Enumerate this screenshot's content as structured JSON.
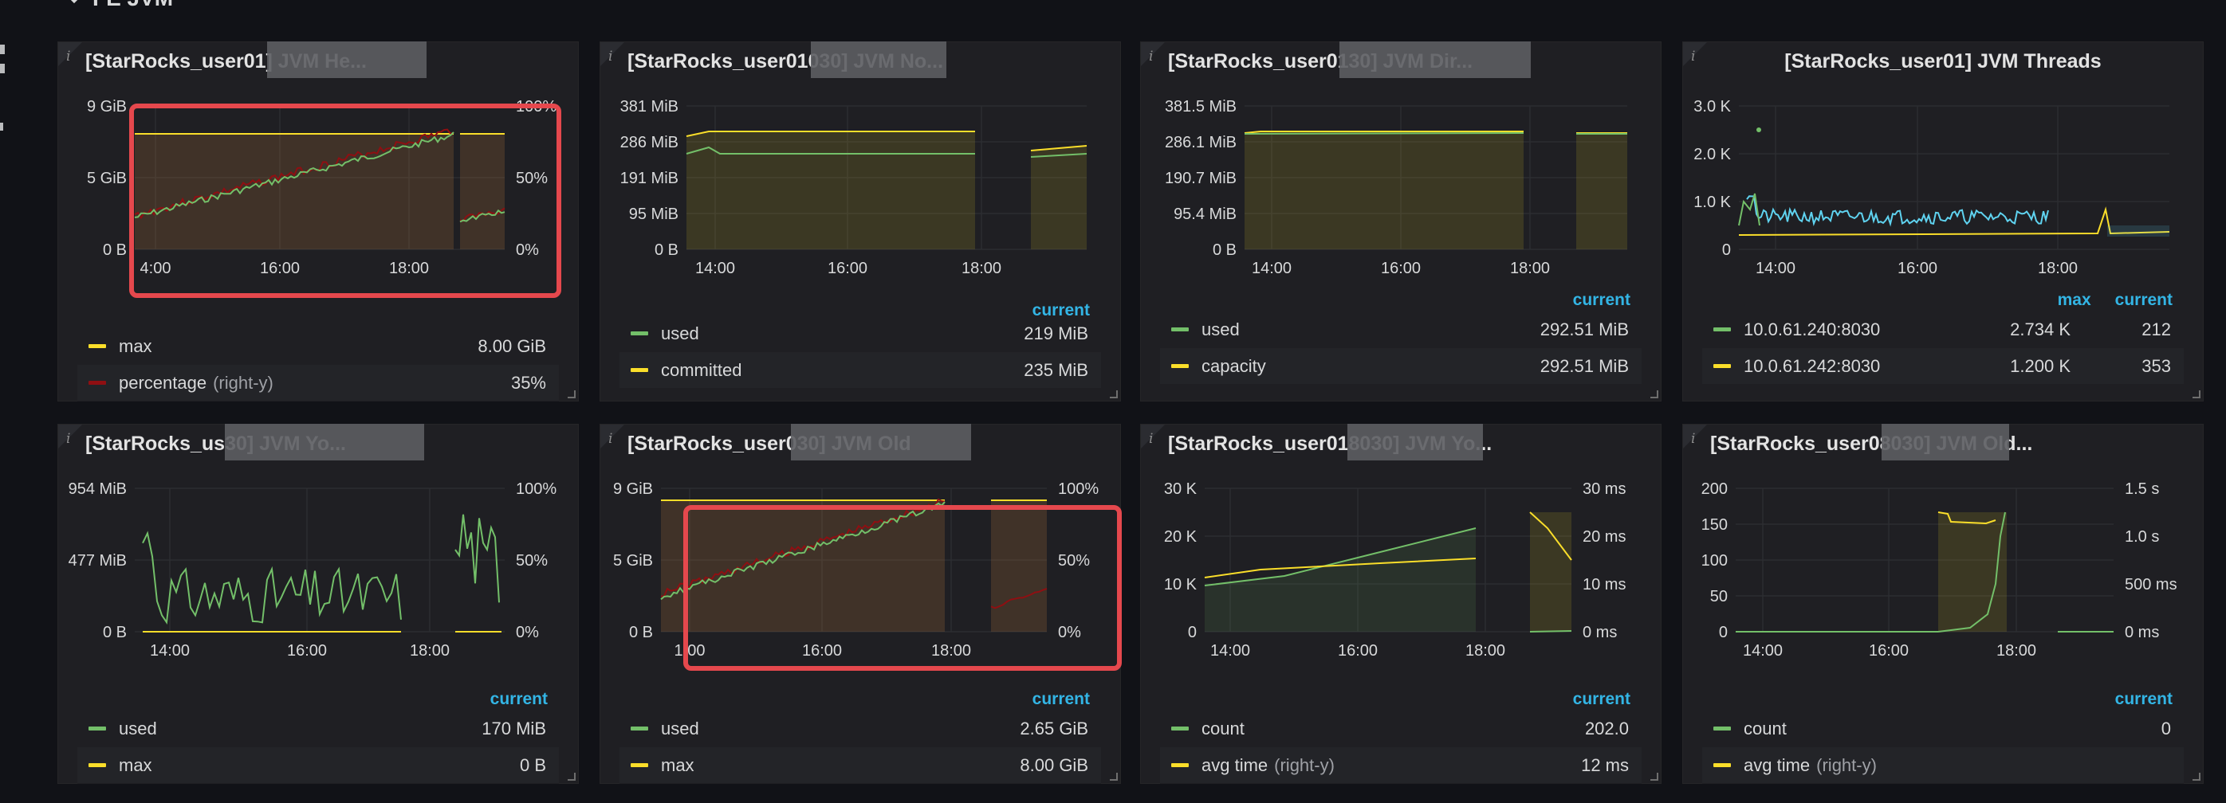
{
  "row": {
    "title": "FE JVM"
  },
  "colors": {
    "green": "#73bf69",
    "yellow": "#fade2a",
    "dark_red": "#8f0f12",
    "blue": "#5fd3f0",
    "accent": "#33b5e5",
    "highlight": "#e5484d"
  },
  "legend_header": {
    "current": "current",
    "max": "max"
  },
  "panels": [
    {
      "title": "[StarRocks_user01] JVM He...",
      "x_ticks": [
        "4:00",
        "16:00",
        "18:00"
      ],
      "y_left": [
        "9 GiB",
        "5 GiB",
        "0 B"
      ],
      "y_right": [
        "100%",
        "50%",
        "0%"
      ],
      "legend": [
        {
          "name": "max",
          "current": "8.00 GiB",
          "color": "yellow"
        },
        {
          "name": "percentage",
          "axis": "(right-y)",
          "current": "35%",
          "color": "dark_red"
        }
      ]
    },
    {
      "title": "[StarRocks_user01030] JVM No...",
      "x_ticks": [
        "14:00",
        "16:00",
        "18:00"
      ],
      "y_left": [
        "381 MiB",
        "286 MiB",
        "191 MiB",
        "95 MiB",
        "0 B"
      ],
      "legend": [
        {
          "name": "used",
          "current": "219 MiB",
          "color": "green"
        },
        {
          "name": "committed",
          "current": "235 MiB",
          "color": "yellow"
        }
      ]
    },
    {
      "title": "[StarRocks_user0130] JVM Dir...",
      "x_ticks": [
        "14:00",
        "16:00",
        "18:00"
      ],
      "y_left": [
        "381.5 MiB",
        "286.1 MiB",
        "190.7 MiB",
        "95.4 MiB",
        "0 B"
      ],
      "legend": [
        {
          "name": "used",
          "current": "292.51 MiB",
          "color": "green"
        },
        {
          "name": "capacity",
          "current": "292.51 MiB",
          "color": "yellow"
        }
      ]
    },
    {
      "title": "[StarRocks_user01] JVM Threads",
      "x_ticks": [
        "14:00",
        "16:00",
        "18:00"
      ],
      "y_left": [
        "3.0 K",
        "2.0 K",
        "1.0 K",
        "0"
      ],
      "legend": [
        {
          "name": "10.0.61.240:8030",
          "max": "2.734 K",
          "current": "212",
          "color": "green"
        },
        {
          "name": "10.0.61.242:8030",
          "max": "1.200 K",
          "current": "353",
          "color": "yellow"
        }
      ]
    },
    {
      "title": "[StarRocks_us30] JVM Yo...",
      "x_ticks": [
        "14:00",
        "16:00",
        "18:00"
      ],
      "y_left": [
        "954 MiB",
        "477 MiB",
        "0 B"
      ],
      "y_right": [
        "100%",
        "50%",
        "0%"
      ],
      "legend": [
        {
          "name": "used",
          "current": "170 MiB",
          "color": "green"
        },
        {
          "name": "max",
          "current": "0 B",
          "color": "yellow"
        }
      ]
    },
    {
      "title": "[StarRocks_user030] JVM Old",
      "x_ticks": [
        "1:00",
        "16:00",
        "18:00"
      ],
      "y_left": [
        "9 GiB",
        "5 GiB",
        "0 B"
      ],
      "y_right": [
        "100%",
        "50%",
        "0%"
      ],
      "legend": [
        {
          "name": "used",
          "current": "2.65 GiB",
          "color": "green"
        },
        {
          "name": "max",
          "current": "8.00 GiB",
          "color": "yellow"
        }
      ]
    },
    {
      "title": "[StarRocks_user018030] JVM Yo...",
      "x_ticks": [
        "14:00",
        "16:00",
        "18:00"
      ],
      "y_left": [
        "30 K",
        "20 K",
        "10 K",
        "0"
      ],
      "y_right": [
        "30 ms",
        "20 ms",
        "10 ms",
        "0 ms"
      ],
      "legend": [
        {
          "name": "count",
          "current": "202.0",
          "color": "green"
        },
        {
          "name": "avg time",
          "axis": "(right-y)",
          "current": "12 ms",
          "color": "yellow"
        }
      ]
    },
    {
      "title": "[StarRocks_user08030] JVM Old...",
      "x_ticks": [
        "14:00",
        "16:00",
        "18:00"
      ],
      "y_left": [
        "200",
        "150",
        "100",
        "50",
        "0"
      ],
      "y_right": [
        "1.5 s",
        "1.0 s",
        "500 ms",
        "0 ms"
      ],
      "legend": [
        {
          "name": "count",
          "current": "0",
          "color": "green"
        },
        {
          "name": "avg time",
          "axis": "(right-y)",
          "current": "",
          "color": "yellow"
        }
      ]
    }
  ]
}
